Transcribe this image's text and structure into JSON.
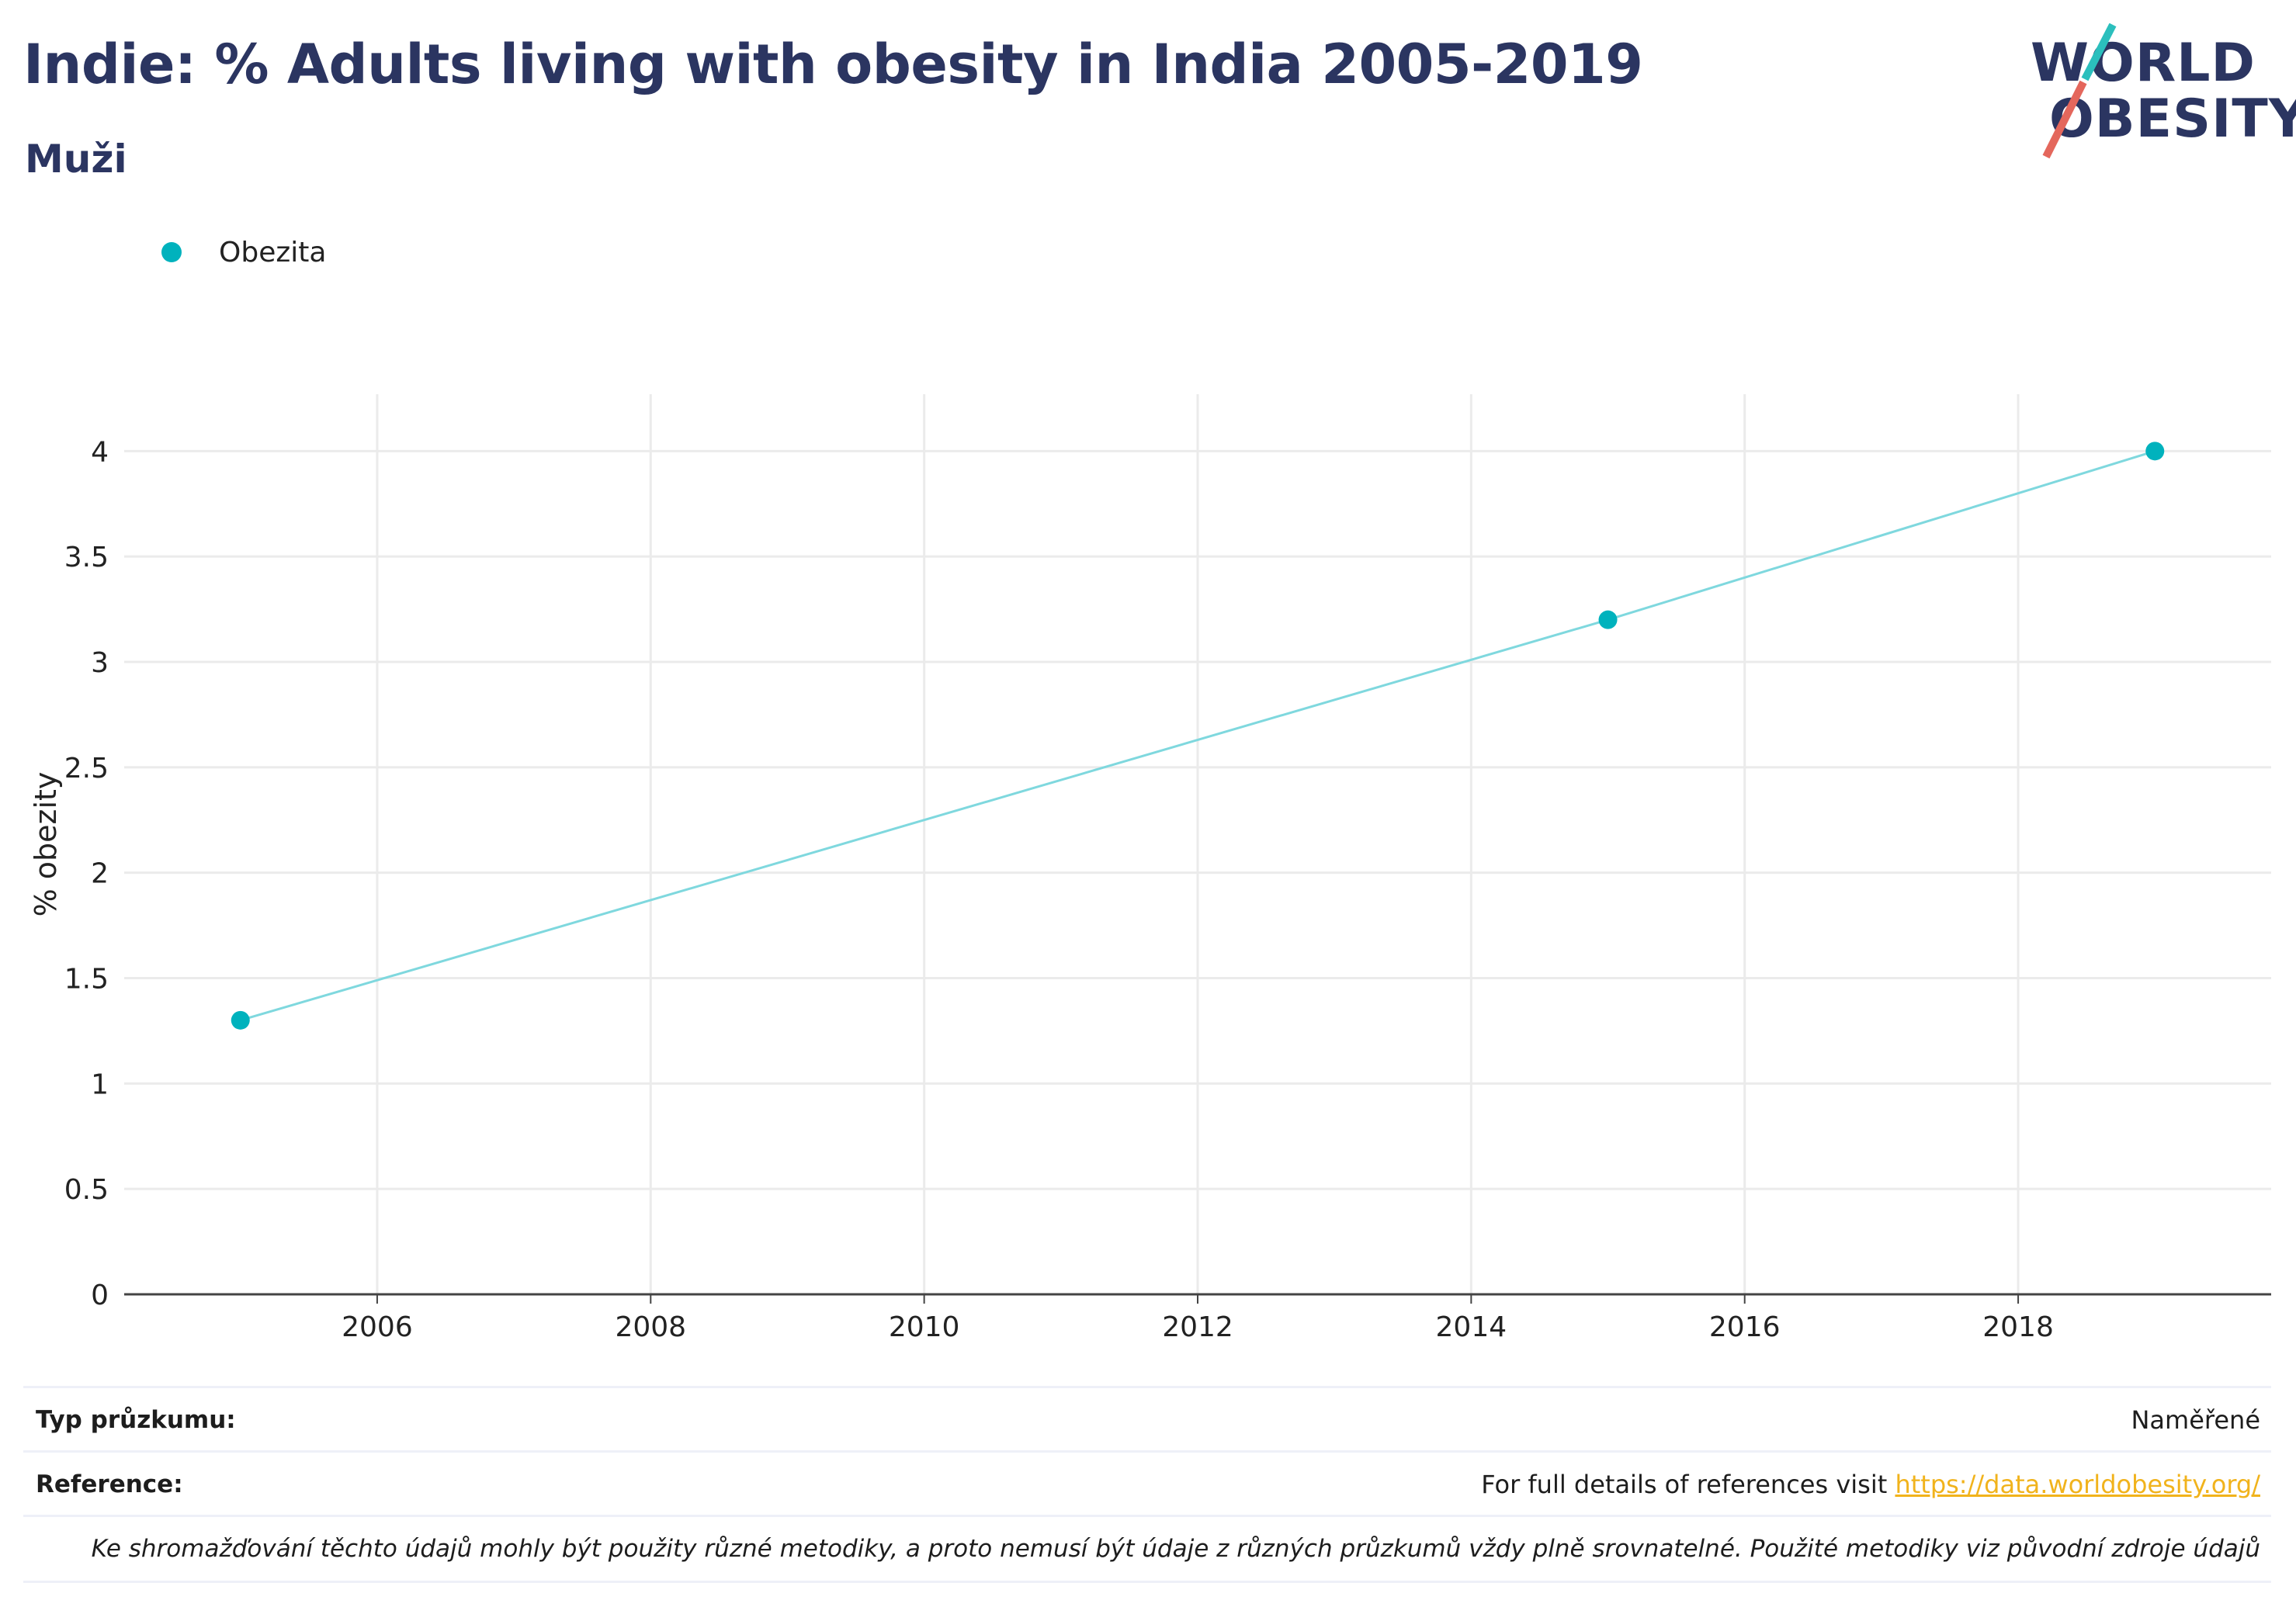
{
  "header": {
    "title": "Indie: % Adults living with obesity in India 2005-2019",
    "subtitle": "Muži"
  },
  "logo": {
    "line1": "WORLD",
    "line2": "OBESITY",
    "accent_teal": "#2bbfbd",
    "accent_red": "#e4675c"
  },
  "legend": {
    "items": [
      {
        "label": "Obezita",
        "color": "#00b2bd"
      }
    ]
  },
  "chart_data": {
    "type": "line",
    "title": "Indie: % Adults living with obesity in India 2005-2019",
    "subtitle": "Muži",
    "xlabel": "",
    "ylabel": "% obezity",
    "xlim": [
      2004.15,
      2019.85
    ],
    "ylim": [
      0,
      4.27
    ],
    "x_ticks": [
      2006,
      2008,
      2010,
      2012,
      2014,
      2016,
      2018
    ],
    "y_ticks": [
      0,
      0.5,
      1,
      1.5,
      2,
      2.5,
      3,
      3.5,
      4
    ],
    "y_tick_labels": [
      "0",
      "0.5",
      "1",
      "1.5",
      "2",
      "2.5",
      "3",
      "3.5",
      "4"
    ],
    "grid": true,
    "legend_position": "top-left",
    "series": [
      {
        "name": "Obezita",
        "color": "#00b2bd",
        "line_color": "#7fd8de",
        "x": [
          2005,
          2015,
          2019
        ],
        "y": [
          1.3,
          3.2,
          4.0
        ]
      }
    ]
  },
  "footer": {
    "survey_type_label": "Typ průzkumu:",
    "survey_type_value": "Naměřené",
    "reference_label": "Reference:",
    "reference_text": "For full details of references visit ",
    "reference_link": "https://data.worldobesity.org/",
    "note": "Ke shromažďování těchto údajů mohly být použity různé metodiky, a proto nemusí být údaje z různých průzkumů vždy plně srovnatelné. Použité metodiky viz původní zdroje údajů"
  }
}
